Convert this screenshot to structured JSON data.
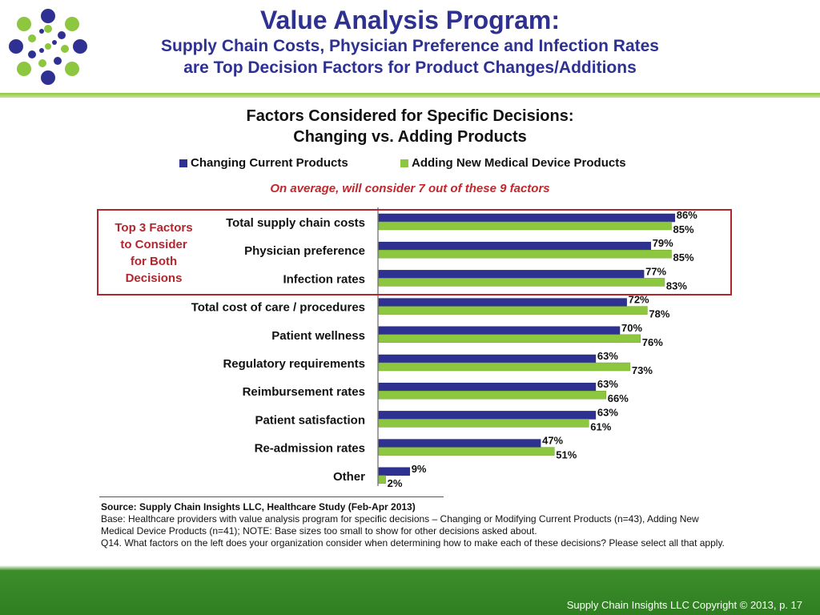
{
  "header": {
    "title": "Value Analysis Program:",
    "subtitle_line1": "Supply Chain Costs, Physician Preference and Infection Rates",
    "subtitle_line2": "are Top Decision Factors for Product Changes/Additions"
  },
  "logo": {
    "icon": "dotted-starburst-logo-icon"
  },
  "chart_data": {
    "type": "bar",
    "orientation": "horizontal",
    "title_line1": "Factors Considered for Specific Decisions:",
    "title_line2": "Changing vs. Adding Products",
    "annotation": "On average, will consider 7 out of these 9 factors",
    "highlight_label": [
      "Top 3 Factors",
      "to Consider",
      "for Both",
      "Decisions"
    ],
    "categories": [
      "Total supply chain costs",
      "Physician preference",
      "Infection rates",
      "Total cost of care / procedures",
      "Patient wellness",
      "Regulatory requirements",
      "Reimbursement rates",
      "Patient satisfaction",
      "Re-admission rates",
      "Other"
    ],
    "series": [
      {
        "name": "Changing Current Products",
        "color": "#2e3192",
        "values": [
          86,
          79,
          77,
          72,
          70,
          63,
          63,
          63,
          47,
          9
        ]
      },
      {
        "name": "Adding New Medical Device Products",
        "color": "#8dc63f",
        "values": [
          85,
          85,
          83,
          78,
          76,
          73,
          66,
          61,
          51,
          2
        ]
      }
    ],
    "xlim": [
      0,
      100
    ],
    "value_suffix": "%",
    "legend_position": "top",
    "grid": false
  },
  "footer": {
    "source_title": "Source:  Supply Chain Insights LLC, Healthcare Study (Feb-Apr 2013)",
    "base_line1": "Base:  Healthcare providers with value analysis program for specific decisions – Changing or Modifying Current Products (n=43), Adding New",
    "base_line2": "Medical Device Products (n=41); NOTE:  Base sizes too small to show for other decisions asked about.",
    "question": "Q14. What factors on the left does your organization consider when determining how to make each of these decisions? Please select all that apply.",
    "copyright": "Supply Chain Insights LLC Copyright © 2013, p. 17"
  }
}
